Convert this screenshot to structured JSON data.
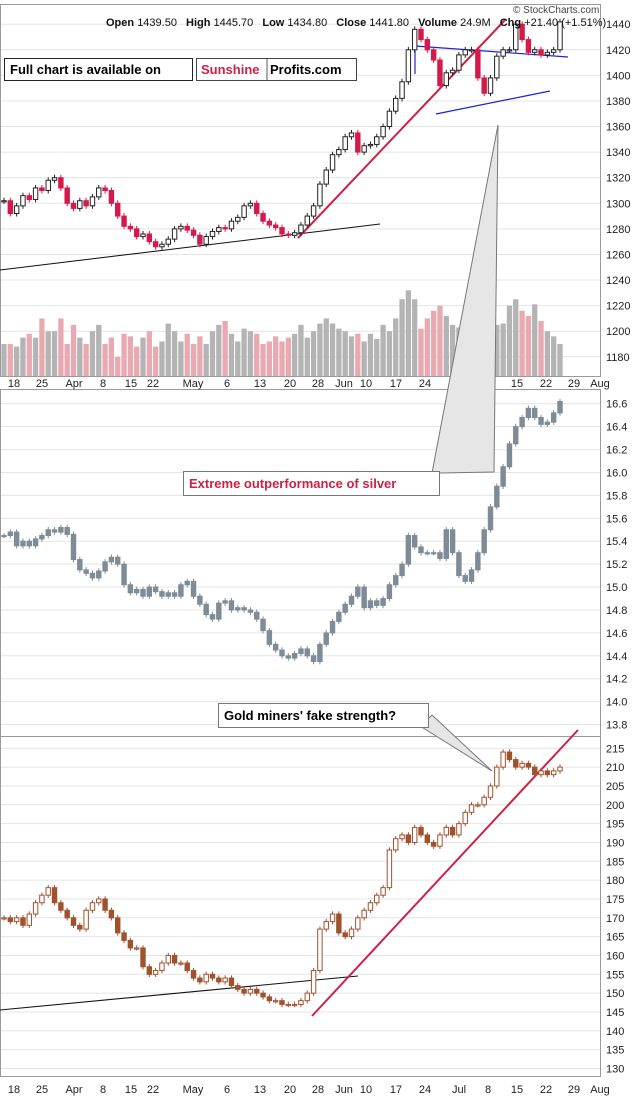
{
  "header": {
    "brand": "© StockCharts.com",
    "open_label": "Open",
    "open": "1439.50",
    "high_label": "High",
    "high": "1445.70",
    "low_label": "Low",
    "low": "1434.80",
    "close_label": "Close",
    "close": "1441.80",
    "volume_label": "Volume",
    "volume": "24.9M",
    "chg_label": "Chg",
    "chg": "+21.40 (+1.51%)"
  },
  "banner": {
    "prefix": "Full chart is available on",
    "brand_red": "Sunshine",
    "brand_black": "Profits.com"
  },
  "annotations": {
    "silver": "Extreme outperformance of silver",
    "miners": "Gold miners' fake strength?"
  },
  "x_labels": [
    "18",
    "25",
    "Apr",
    "8",
    "15",
    "22",
    "May",
    "6",
    "13",
    "20",
    "28",
    "Jun",
    "10",
    "17",
    "24",
    "Jul",
    "8",
    "15",
    "22",
    "29",
    "Aug"
  ],
  "colors": {
    "gold_up": "#222222",
    "gold_down": "#d6194b",
    "silver": "#7d8c96",
    "miners": "#a0522d",
    "trend_red": "#cc2244",
    "triangle_blue": "#2020dd",
    "vol_gray": "#b4b4b4",
    "vol_pink": "#e9a9b1",
    "anno_red": "#cc2244"
  },
  "chart_data": [
    {
      "type": "candlestick",
      "yticks": [
        1180,
        1200,
        1220,
        1240,
        1260,
        1280,
        1300,
        1320,
        1340,
        1360,
        1380,
        1400,
        1420,
        1440
      ],
      "ylim": [
        1165,
        1455
      ],
      "close": [
        1302,
        1292,
        1298,
        1306,
        1303,
        1312,
        1310,
        1318,
        1320,
        1312,
        1300,
        1296,
        1302,
        1298,
        1305,
        1312,
        1310,
        1300,
        1290,
        1282,
        1280,
        1274,
        1276,
        1270,
        1266,
        1268,
        1272,
        1280,
        1282,
        1279,
        1275,
        1268,
        1274,
        1278,
        1281,
        1280,
        1286,
        1289,
        1298,
        1300,
        1292,
        1286,
        1283,
        1281,
        1276,
        1275,
        1277,
        1283,
        1290,
        1298,
        1315,
        1326,
        1338,
        1342,
        1352,
        1355,
        1340,
        1345,
        1346,
        1352,
        1360,
        1372,
        1382,
        1395,
        1420,
        1436,
        1428,
        1420,
        1412,
        1392,
        1402,
        1404,
        1416,
        1420,
        1420,
        1398,
        1386,
        1398,
        1415,
        1420,
        1420,
        1440,
        1428,
        1418,
        1420,
        1416,
        1418,
        1420,
        1441.8
      ],
      "volume": [
        1190,
        1190,
        1188,
        1195,
        1198,
        1195,
        1210,
        1200,
        1200,
        1210,
        1190,
        1205,
        1195,
        1190,
        1200,
        1205,
        1190,
        1195,
        1180,
        1198,
        1196,
        1188,
        1195,
        1200,
        1188,
        1192,
        1206,
        1200,
        1192,
        1198,
        1190,
        1196,
        1190,
        1200,
        1205,
        1208,
        1198,
        1192,
        1202,
        1200,
        1198,
        1190,
        1192,
        1196,
        1192,
        1195,
        1198,
        1205,
        1195,
        1200,
        1206,
        1210,
        1206,
        1202,
        1200,
        1196,
        1198,
        1192,
        1198,
        1194,
        1205,
        1200,
        1210,
        1225,
        1232,
        1225,
        1202,
        1210,
        1216,
        1220,
        1212,
        1205,
        1203,
        1205,
        1230,
        1212,
        1202,
        1208,
        1205,
        1206,
        1220,
        1225,
        1216,
        1212,
        1221,
        1208,
        1200,
        1196,
        1190
      ]
    },
    {
      "type": "candlestick",
      "yticks": [
        13.8,
        14.0,
        14.2,
        14.4,
        14.6,
        14.8,
        15.0,
        15.2,
        15.4,
        15.6,
        15.8,
        16.0,
        16.2,
        16.4,
        16.6
      ],
      "ylim": [
        13.7,
        16.72
      ],
      "close": [
        15.45,
        15.48,
        15.36,
        15.4,
        15.36,
        15.42,
        15.45,
        15.5,
        15.48,
        15.52,
        15.46,
        15.24,
        15.15,
        15.12,
        15.08,
        15.14,
        15.22,
        15.26,
        15.2,
        15.02,
        14.95,
        14.98,
        14.92,
        15.0,
        14.96,
        14.92,
        14.95,
        14.92,
        15.02,
        15.05,
        14.92,
        14.85,
        14.76,
        14.72,
        14.86,
        14.88,
        14.8,
        14.82,
        14.8,
        14.78,
        14.72,
        14.62,
        14.5,
        14.45,
        14.4,
        14.38,
        14.42,
        14.46,
        14.4,
        14.35,
        14.5,
        14.6,
        14.7,
        14.78,
        14.85,
        14.92,
        15.0,
        14.82,
        14.88,
        14.84,
        14.9,
        15.02,
        15.1,
        15.2,
        15.45,
        15.35,
        15.3,
        15.3,
        15.3,
        15.25,
        15.5,
        15.3,
        15.1,
        15.05,
        15.15,
        15.3,
        15.5,
        15.7,
        15.88,
        16.05,
        16.25,
        16.4,
        16.48,
        16.56,
        16.48,
        16.42,
        16.44,
        16.52,
        16.62
      ]
    },
    {
      "type": "candlestick",
      "yticks": [
        130,
        135,
        140,
        145,
        150,
        155,
        160,
        165,
        170,
        175,
        180,
        185,
        190,
        195,
        200,
        205,
        210,
        215
      ],
      "ylim": [
        128,
        218
      ],
      "close": [
        170,
        169,
        170,
        168,
        171,
        174,
        176,
        178,
        174,
        172,
        170,
        168,
        167,
        172,
        174,
        175,
        172,
        170,
        166,
        164,
        162,
        162,
        157,
        155,
        156,
        158,
        160,
        158,
        158,
        156,
        154,
        153,
        155,
        154,
        153,
        154,
        152,
        151,
        150,
        151,
        150,
        149,
        148,
        148,
        147,
        147,
        147,
        148,
        150,
        156,
        167,
        169,
        171,
        166,
        165,
        167,
        170,
        172,
        174,
        176,
        178,
        188,
        191,
        192,
        190,
        194,
        192,
        190,
        189,
        192,
        194,
        192,
        195,
        198,
        200,
        200,
        202,
        205,
        210,
        214,
        212,
        210,
        211,
        210,
        208,
        209,
        208,
        209,
        210
      ]
    }
  ]
}
